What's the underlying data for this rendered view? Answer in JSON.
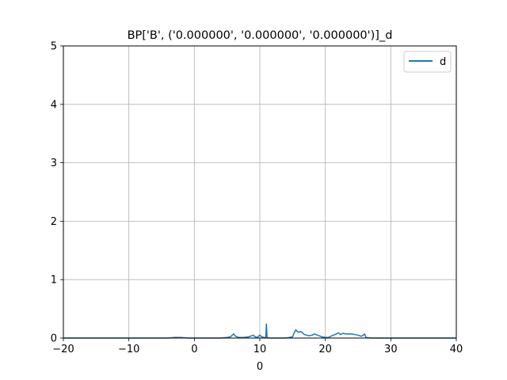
{
  "chart_data": {
    "type": "line",
    "title": "BP['B', ('0.000000', '0.000000', '0.000000')]_d",
    "xlabel": "0",
    "ylabel": "",
    "xlim": [
      -20,
      40
    ],
    "ylim": [
      0,
      5
    ],
    "x_ticks": [
      -20,
      -10,
      0,
      10,
      20,
      30,
      40
    ],
    "x_tick_labels": [
      "−20",
      "−10",
      "0",
      "10",
      "20",
      "30",
      "40"
    ],
    "y_ticks": [
      0,
      1,
      2,
      3,
      4,
      5
    ],
    "y_tick_labels": [
      "0",
      "1",
      "2",
      "3",
      "4",
      "5"
    ],
    "grid": true,
    "legend_position": "top-right",
    "series": [
      {
        "name": "d",
        "color": "#1f77b4",
        "x": [
          -20,
          -4,
          -3,
          -2,
          -1,
          0,
          2,
          4,
          5,
          5.5,
          6,
          6.3,
          6.8,
          7.5,
          8.3,
          9,
          9.3,
          9.6,
          10,
          10.3,
          10.7,
          10.9,
          11,
          11.1,
          11.3,
          12,
          13,
          14,
          15,
          15.2,
          15.5,
          15.8,
          16.3,
          16.8,
          17.5,
          18,
          18.3,
          18.8,
          19.5,
          20,
          20.5,
          21,
          21.5,
          22,
          22.3,
          22.7,
          23.2,
          24,
          24.5,
          25,
          25.5,
          25.8,
          26,
          26.2,
          27,
          30,
          35,
          40
        ],
        "y": [
          0,
          0,
          0.01,
          0.01,
          0,
          0,
          0,
          0,
          0.01,
          0.02,
          0.07,
          0.03,
          0.01,
          0.01,
          0.02,
          0.05,
          0.02,
          0.01,
          0.05,
          0.02,
          0.01,
          0,
          0.24,
          0.02,
          0,
          0,
          0,
          0,
          0.02,
          0.08,
          0.14,
          0.1,
          0.11,
          0.06,
          0.04,
          0.05,
          0.07,
          0.05,
          0.02,
          0.01,
          0.01,
          0.04,
          0.06,
          0.09,
          0.06,
          0.08,
          0.07,
          0.07,
          0.06,
          0.05,
          0.03,
          0.05,
          0.07,
          0.01,
          0,
          0,
          0,
          0
        ]
      }
    ]
  }
}
